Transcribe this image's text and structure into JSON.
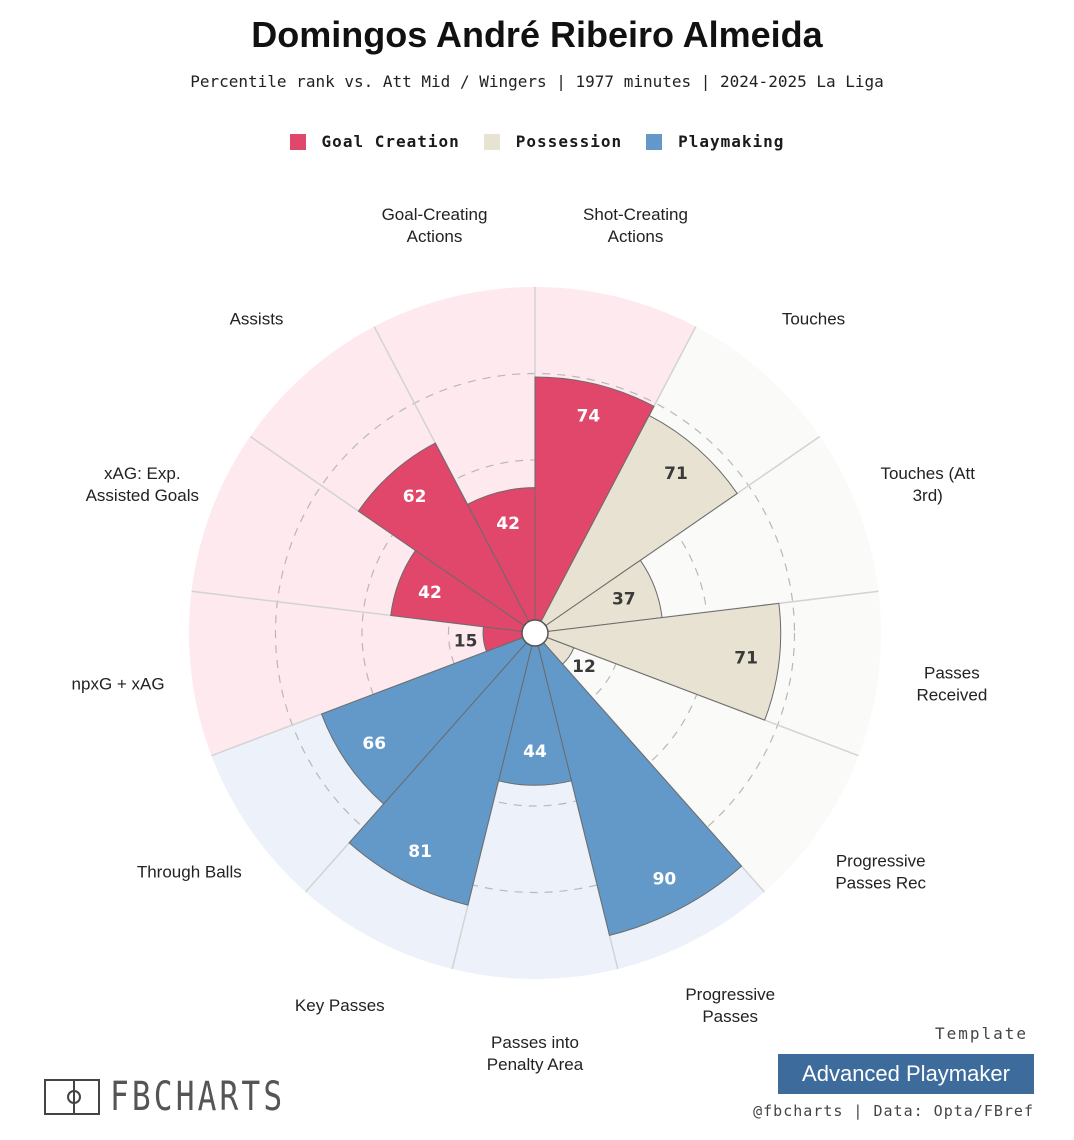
{
  "header": {
    "title": "Domingos André Ribeiro Almeida",
    "subtitle": "Percentile rank vs. Att Mid / Wingers | 1977 minutes | 2024-2025 La Liga"
  },
  "legend": [
    {
      "label": "Goal Creation",
      "color": "#e0476b"
    },
    {
      "label": "Possession",
      "color": "#e8e2d2"
    },
    {
      "label": "Playmaking",
      "color": "#6399c9"
    }
  ],
  "chart_data": {
    "type": "polar-bar",
    "start_angle_deg": 0,
    "direction": "clockwise",
    "rmax": 100,
    "grid_rings": [
      25,
      50,
      75
    ],
    "groups": {
      "Goal Creation": {
        "fill": "#e0476b",
        "bg": "#fde9ee"
      },
      "Possession": {
        "fill": "#e8e2d2",
        "bg": "#fafaf8"
      },
      "Playmaking": {
        "fill": "#6399c9",
        "bg": "#edf2fa"
      }
    },
    "categories": [
      {
        "label": "Shot-Creating Actions",
        "value": 74,
        "group": "Goal Creation"
      },
      {
        "label": "Touches",
        "value": 71,
        "group": "Possession"
      },
      {
        "label": "Touches (Att 3rd)",
        "value": 37,
        "group": "Possession"
      },
      {
        "label": "Passes Received",
        "value": 71,
        "group": "Possession"
      },
      {
        "label": "Progressive Passes Rec",
        "value": 12,
        "group": "Possession"
      },
      {
        "label": "Progressive Passes",
        "value": 90,
        "group": "Playmaking"
      },
      {
        "label": "Passes into Penalty Area",
        "value": 44,
        "group": "Playmaking"
      },
      {
        "label": "Key Passes",
        "value": 81,
        "group": "Playmaking"
      },
      {
        "label": "Through Balls",
        "value": 66,
        "group": "Playmaking"
      },
      {
        "label": "npxG + xAG",
        "value": 15,
        "group": "Goal Creation"
      },
      {
        "label": "xAG: Exp. Assisted Goals",
        "value": 42,
        "group": "Goal Creation"
      },
      {
        "label": "Assists",
        "value": 62,
        "group": "Goal Creation"
      },
      {
        "label": "Goal-Creating Actions",
        "value": 42,
        "group": "Goal Creation"
      }
    ]
  },
  "footer": {
    "logo_text": "FBCHARTS",
    "template_label": "Template",
    "template_name": "Advanced Playmaker",
    "credits": "@fbcharts | Data: Opta/FBref"
  }
}
